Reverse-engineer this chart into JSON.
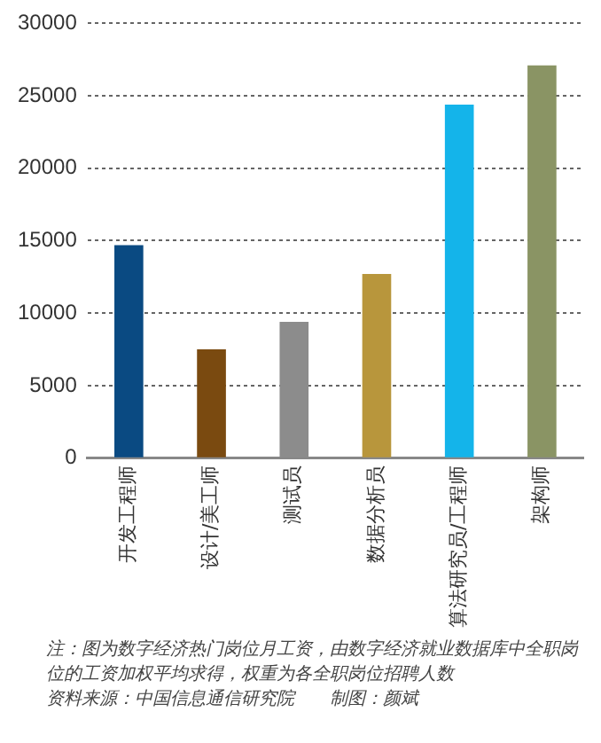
{
  "chart_data": {
    "type": "bar",
    "categories": [
      "开发工程师",
      "设计/美工师",
      "测试员",
      "数据分析员",
      "算法研究员/工程师",
      "架构师"
    ],
    "values": [
      14700,
      7500,
      9400,
      12700,
      24400,
      27100
    ],
    "colors": [
      "#0a4a82",
      "#7a4a10",
      "#8c8c8c",
      "#b8963c",
      "#14b4ea",
      "#8a9464"
    ],
    "ylim": [
      0,
      30000
    ],
    "yticks": [
      0,
      5000,
      10000,
      15000,
      20000,
      25000,
      30000
    ],
    "grid": "y",
    "legend": false,
    "annotations": [
      "注：图为数字经济热门岗位月工资，由数字经济就业数据库中全职岗位的工资加权平均求得，权重为各全职岗位招聘人数",
      "资料来源：中国信息通信研究院　　制图：颜斌"
    ]
  }
}
